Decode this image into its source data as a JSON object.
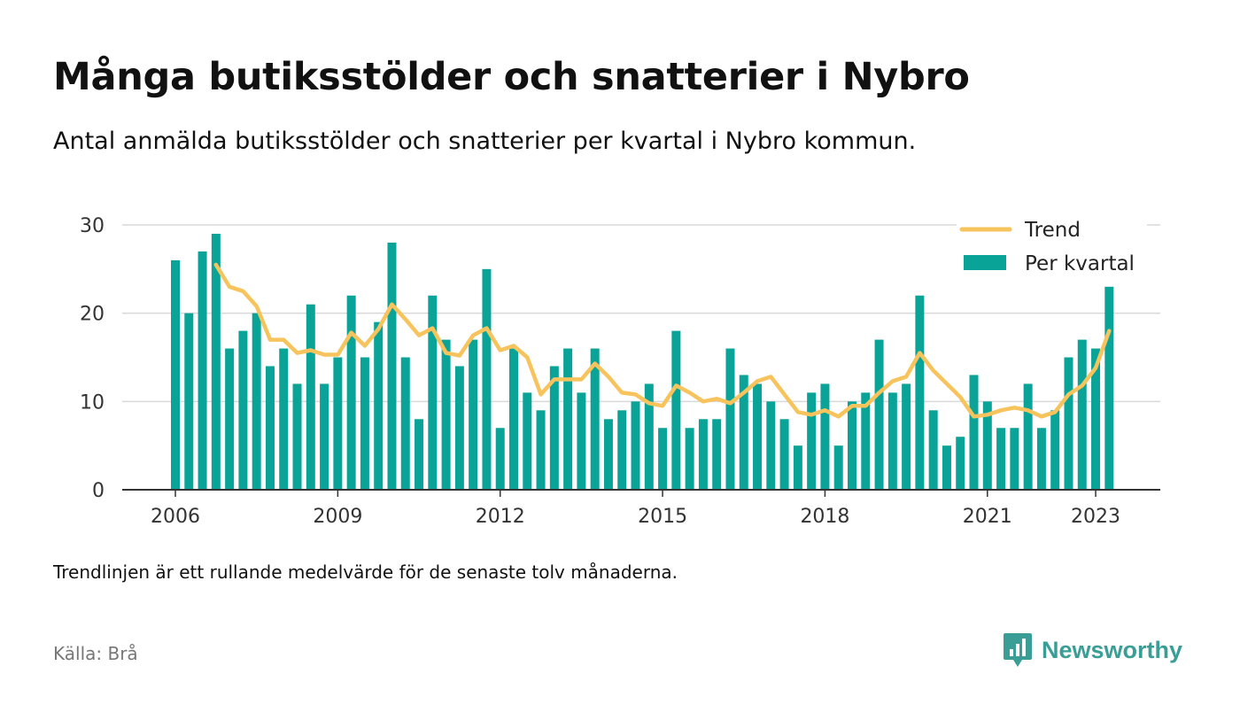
{
  "header": {
    "title": "Många butiksstölder och snatterier i Nybro",
    "subtitle": "Antal anmälda butiksstölder och snatterier per kvartal i Nybro kommun."
  },
  "footer": {
    "note": "Trendlinjen är ett rullande medelvärde för de senaste tolv månaderna.",
    "source": "Källa: Brå",
    "brand": "Newsworthy"
  },
  "colors": {
    "bars": "#0aa398",
    "trend": "#f7c35c",
    "grid": "#d9d9d9",
    "axis": "#333333",
    "brand": "#3a9e96"
  },
  "chart_data": {
    "type": "bar",
    "start": "2006 Q1",
    "x_ticks": [
      "2006",
      "2009",
      "2012",
      "2015",
      "2018",
      "2021",
      "2023"
    ],
    "y_ticks": [
      0,
      10,
      20,
      30
    ],
    "ylim": [
      0,
      30
    ],
    "grid": true,
    "legend_position": "top-right",
    "series": [
      {
        "name": "Per kvartal",
        "type": "bar",
        "values": [
          26,
          20,
          27,
          29,
          16,
          18,
          20,
          14,
          16,
          12,
          21,
          12,
          15,
          22,
          15,
          19,
          28,
          15,
          8,
          22,
          17,
          14,
          17,
          25,
          7,
          16,
          11,
          9,
          14,
          16,
          11,
          16,
          8,
          9,
          10,
          12,
          7,
          18,
          7,
          8,
          8,
          16,
          13,
          12,
          10,
          8,
          5,
          11,
          12,
          5,
          10,
          11,
          17,
          11,
          12,
          22,
          9,
          5,
          6,
          13,
          10,
          7,
          7,
          12,
          7,
          9,
          15,
          17,
          16,
          23
        ]
      },
      {
        "name": "Trend",
        "type": "line",
        "values": [
          null,
          null,
          null,
          25.5,
          23,
          22.5,
          20.8,
          17,
          17,
          15.5,
          15.8,
          15.3,
          15.3,
          17.8,
          16.3,
          18.2,
          21,
          19.3,
          17.5,
          18.3,
          15.5,
          15.2,
          17.5,
          18.3,
          15.8,
          16.3,
          15,
          10.8,
          12.5,
          12.5,
          12.5,
          14.3,
          12.8,
          11,
          10.8,
          9.8,
          9.5,
          11.8,
          11,
          10,
          10.3,
          9.8,
          11,
          12.3,
          12.8,
          10.8,
          8.8,
          8.5,
          9,
          8.3,
          9.5,
          9.5,
          11,
          12.3,
          12.8,
          15.5,
          13.5,
          12,
          10.5,
          8.3,
          8.5,
          9,
          9.3,
          9,
          8.3,
          8.8,
          10.8,
          11.8,
          13.8,
          18
        ]
      }
    ]
  }
}
